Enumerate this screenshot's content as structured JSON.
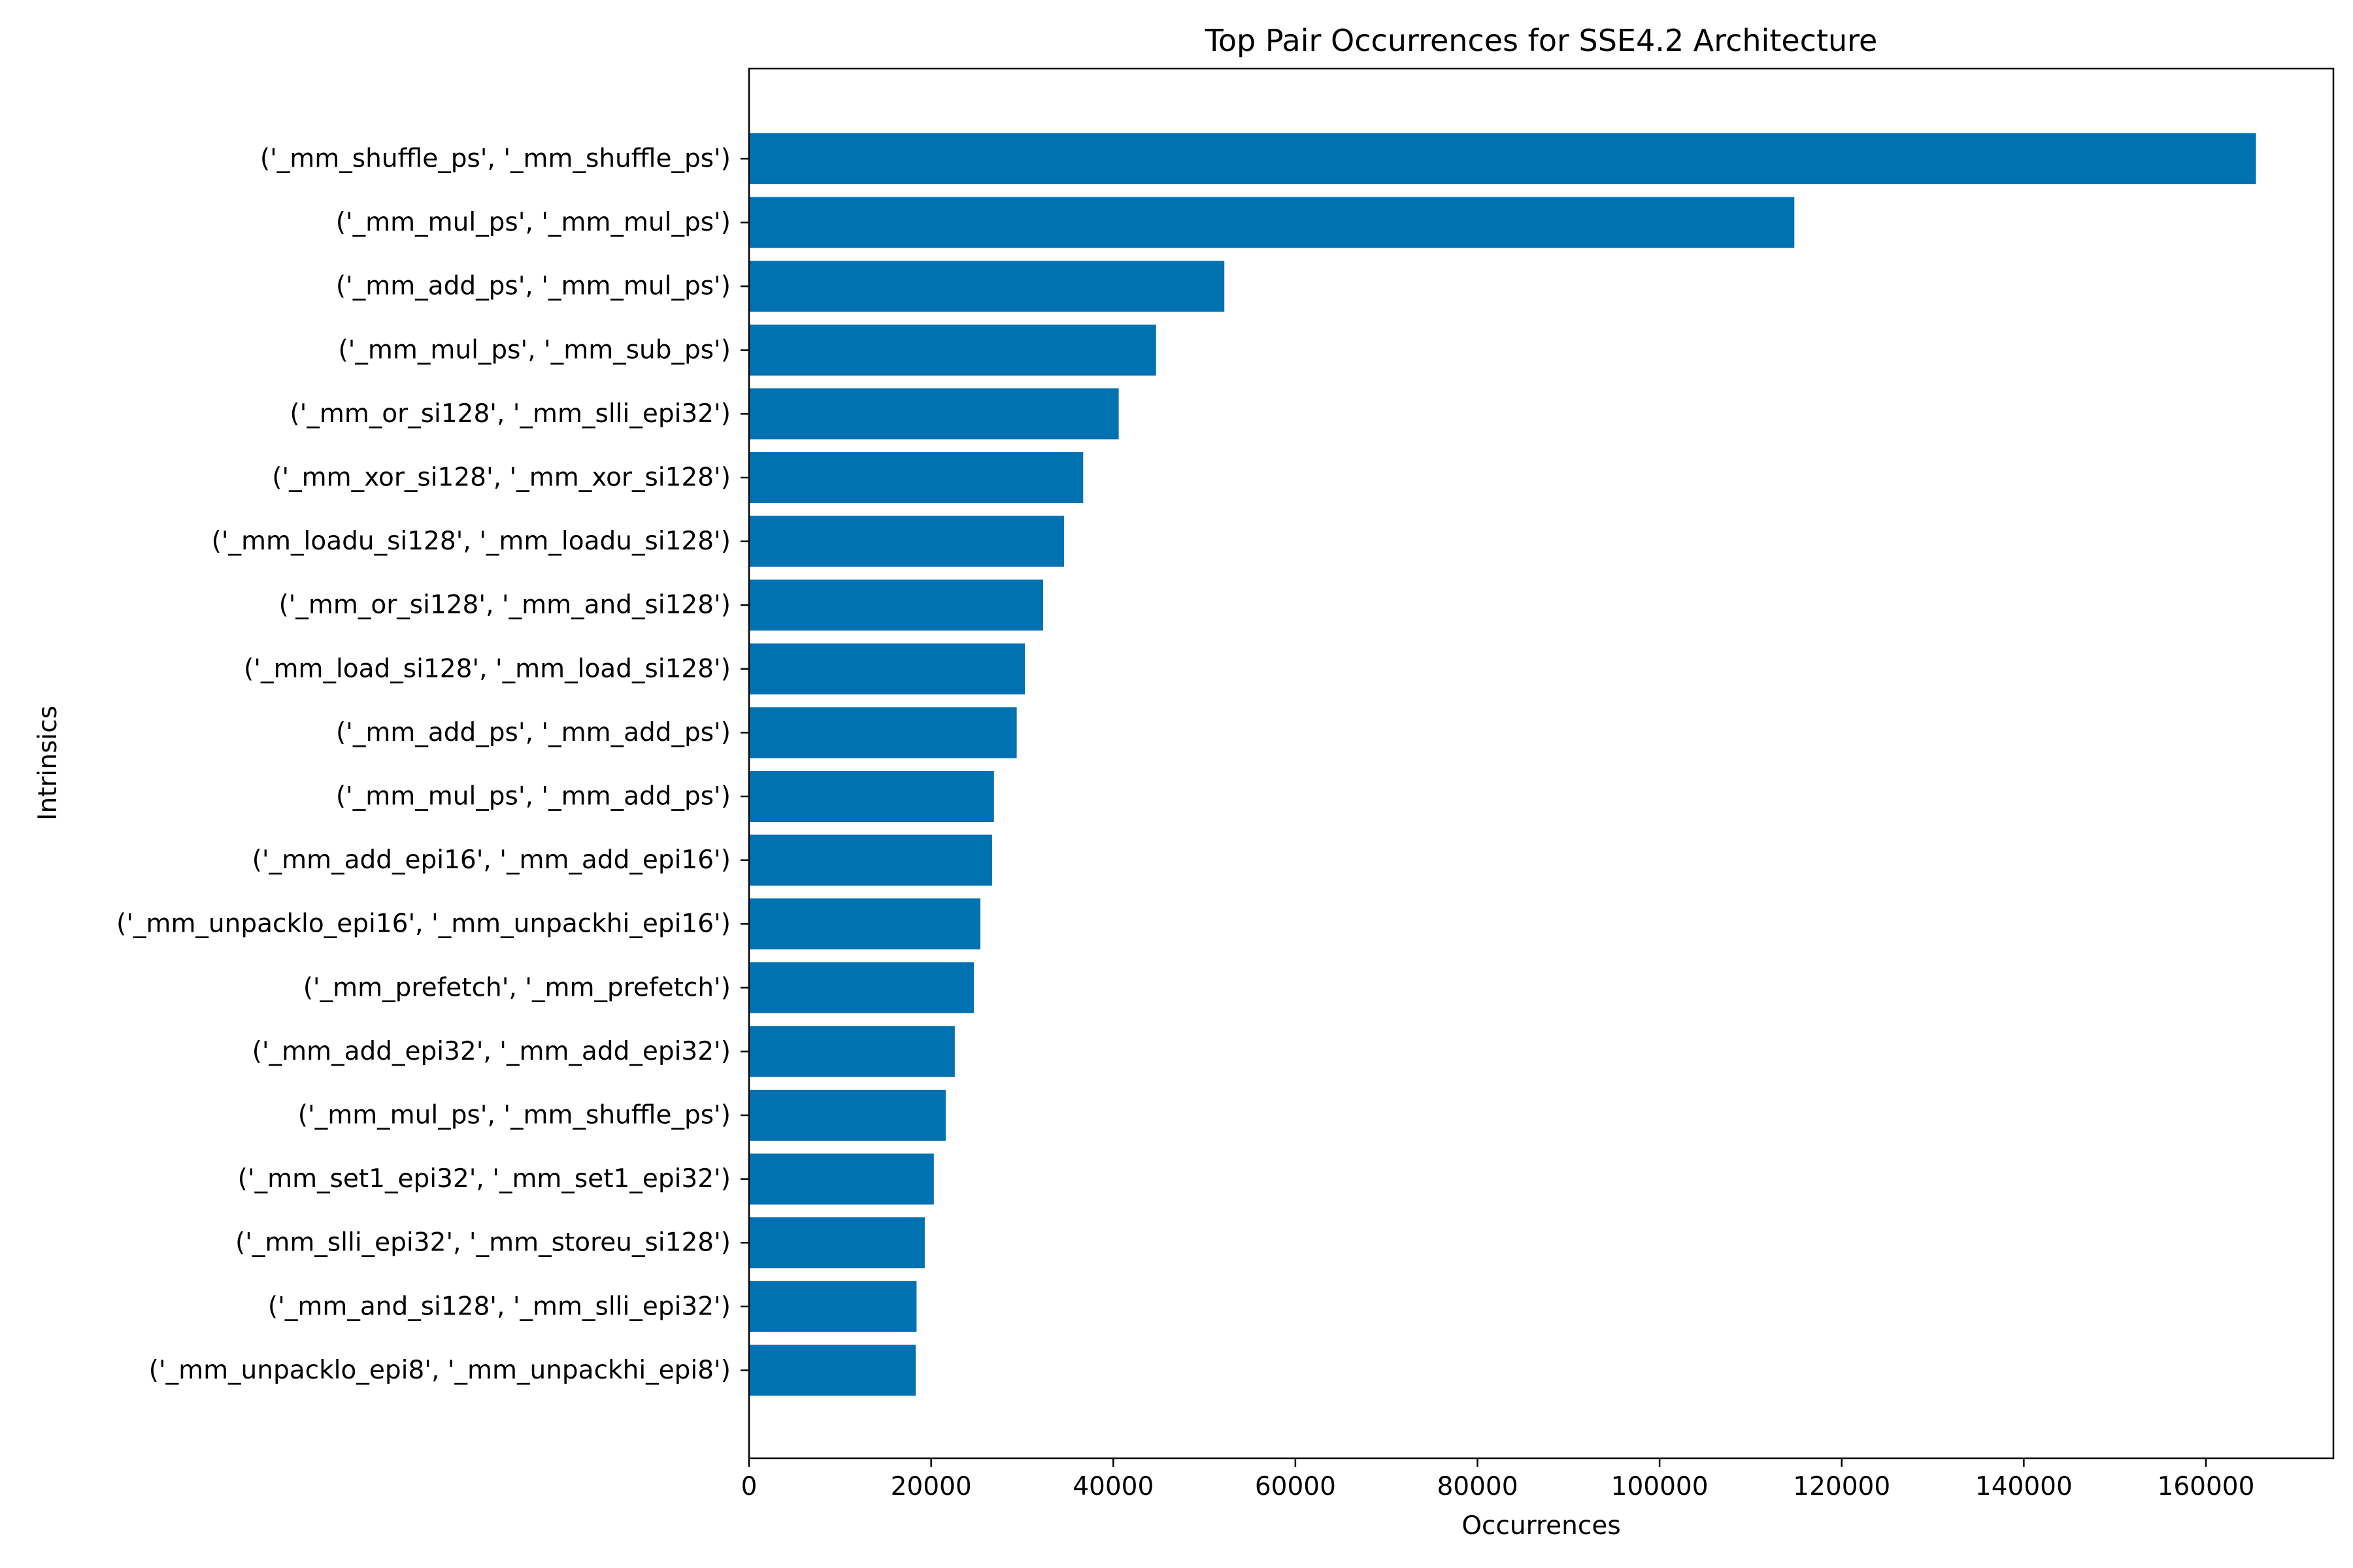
{
  "chart_data": {
    "type": "bar",
    "orientation": "horizontal",
    "title": "Top Pair Occurrences for SSE4.2 Architecture",
    "xlabel": "Occurrences",
    "ylabel": "Intrinsics",
    "xlim": [
      0,
      174000
    ],
    "xticks": [
      0,
      20000,
      40000,
      60000,
      80000,
      100000,
      120000,
      140000,
      160000
    ],
    "bar_color": "#0072b2",
    "grid": false,
    "categories": [
      "('_mm_shuffle_ps', '_mm_shuffle_ps')",
      "('_mm_mul_ps', '_mm_mul_ps')",
      "('_mm_add_ps', '_mm_mul_ps')",
      "('_mm_mul_ps', '_mm_sub_ps')",
      "('_mm_or_si128', '_mm_slli_epi32')",
      "('_mm_xor_si128', '_mm_xor_si128')",
      "('_mm_loadu_si128', '_mm_loadu_si128')",
      "('_mm_or_si128', '_mm_and_si128')",
      "('_mm_load_si128', '_mm_load_si128')",
      "('_mm_add_ps', '_mm_add_ps')",
      "('_mm_mul_ps', '_mm_add_ps')",
      "('_mm_add_epi16', '_mm_add_epi16')",
      "('_mm_unpacklo_epi16', '_mm_unpackhi_epi16')",
      "('_mm_prefetch', '_mm_prefetch')",
      "('_mm_add_epi32', '_mm_add_epi32')",
      "('_mm_mul_ps', '_mm_shuffle_ps')",
      "('_mm_set1_epi32', '_mm_set1_epi32')",
      "('_mm_slli_epi32', '_mm_storeu_si128')",
      "('_mm_and_si128', '_mm_slli_epi32')",
      "('_mm_unpacklo_epi8', '_mm_unpackhi_epi8')"
    ],
    "values": [
      165500,
      114800,
      52200,
      44700,
      40600,
      36700,
      34600,
      32300,
      30300,
      29400,
      26900,
      26700,
      25400,
      24700,
      22600,
      21600,
      20300,
      19300,
      18400,
      18300
    ]
  }
}
